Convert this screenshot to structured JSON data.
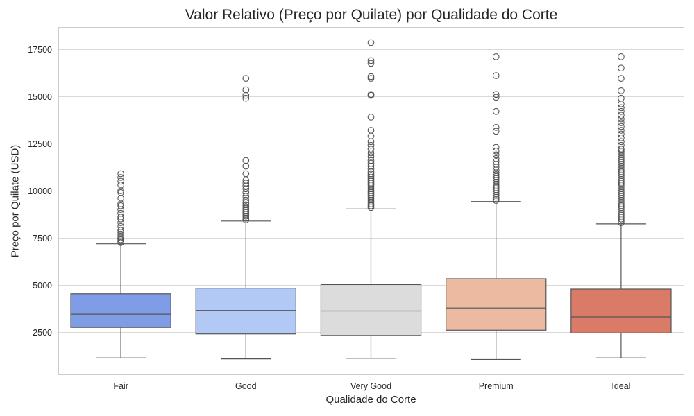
{
  "chart_data": {
    "type": "box",
    "title": "Valor Relativo (Preço por Quilate) por Qualidade do Corte",
    "xlabel": "Qualidade do Corte",
    "ylabel": "Preço por Quilate (USD)",
    "ylim": [
      1000,
      18500
    ],
    "yticks": [
      2500,
      5000,
      7500,
      10000,
      12500,
      15000,
      17500
    ],
    "ytick_labels": [
      "2500",
      "5000",
      "7500",
      "10000",
      "12500",
      "15000",
      "17500"
    ],
    "grid": "horizontal",
    "categories": [
      "Fair",
      "Good",
      "Very Good",
      "Premium",
      "Ideal"
    ],
    "colors": [
      "#7f9ce7",
      "#b1c9f4",
      "#dcdcdc",
      "#ecb9a1",
      "#d97b66"
    ],
    "series": [
      {
        "category": "Fair",
        "whisker_low": 1130,
        "q1": 2750,
        "median": 3450,
        "q3": 4530,
        "whisker_high": 7180,
        "outliers": [
          7250,
          7300,
          7400,
          7500,
          7600,
          7700,
          7800,
          7900,
          8100,
          8300,
          8500,
          8600,
          8800,
          9000,
          9200,
          9300,
          9600,
          9900,
          10000,
          10300,
          10500,
          10700,
          10900
        ]
      },
      {
        "category": "Good",
        "whisker_low": 1080,
        "q1": 2400,
        "median": 3650,
        "q3": 4830,
        "whisker_high": 8390,
        "outliers": [
          8450,
          8550,
          8650,
          8750,
          8850,
          8950,
          9050,
          9150,
          9250,
          9350,
          9500,
          9700,
          9900,
          10100,
          10250,
          10400,
          10550,
          10900,
          11300,
          11600,
          14900,
          15050,
          15350,
          15950
        ]
      },
      {
        "category": "Very Good",
        "whisker_low": 1110,
        "q1": 2320,
        "median": 3620,
        "q3": 5020,
        "whisker_high": 9030,
        "outliers": [
          9100,
          9200,
          9300,
          9400,
          9500,
          9600,
          9700,
          9800,
          9900,
          10000,
          10100,
          10200,
          10300,
          10400,
          10500,
          10600,
          10700,
          10800,
          10900,
          11000,
          11150,
          11300,
          11450,
          11600,
          11800,
          12000,
          12200,
          12400,
          12600,
          12900,
          13200,
          13900,
          15050,
          15100,
          15950,
          16050,
          16750,
          16900,
          17850
        ]
      },
      {
        "category": "Premium",
        "whisker_low": 1050,
        "q1": 2600,
        "median": 3780,
        "q3": 5330,
        "whisker_high": 9420,
        "outliers": [
          9480,
          9550,
          9650,
          9750,
          9850,
          9950,
          10050,
          10150,
          10250,
          10350,
          10450,
          10550,
          10650,
          10750,
          10850,
          10950,
          11100,
          11250,
          11400,
          11550,
          11700,
          11900,
          12100,
          12300,
          13150,
          13350,
          14200,
          14950,
          15100,
          16100,
          17100
        ]
      },
      {
        "category": "Ideal",
        "whisker_low": 1130,
        "q1": 2450,
        "median": 3310,
        "q3": 4780,
        "whisker_high": 8240,
        "outliers": [
          8300,
          8400,
          8500,
          8600,
          8700,
          8800,
          8900,
          9000,
          9100,
          9200,
          9300,
          9400,
          9500,
          9600,
          9700,
          9800,
          9900,
          10000,
          10100,
          10200,
          10300,
          10400,
          10500,
          10600,
          10700,
          10800,
          10900,
          11000,
          11100,
          11200,
          11300,
          11400,
          11500,
          11600,
          11700,
          11800,
          11900,
          12000,
          12100,
          12200,
          12400,
          12600,
          12800,
          13000,
          13200,
          13400,
          13600,
          13800,
          14000,
          14200,
          14400,
          14600,
          14900,
          15300,
          15950,
          16500,
          17100
        ]
      }
    ]
  }
}
